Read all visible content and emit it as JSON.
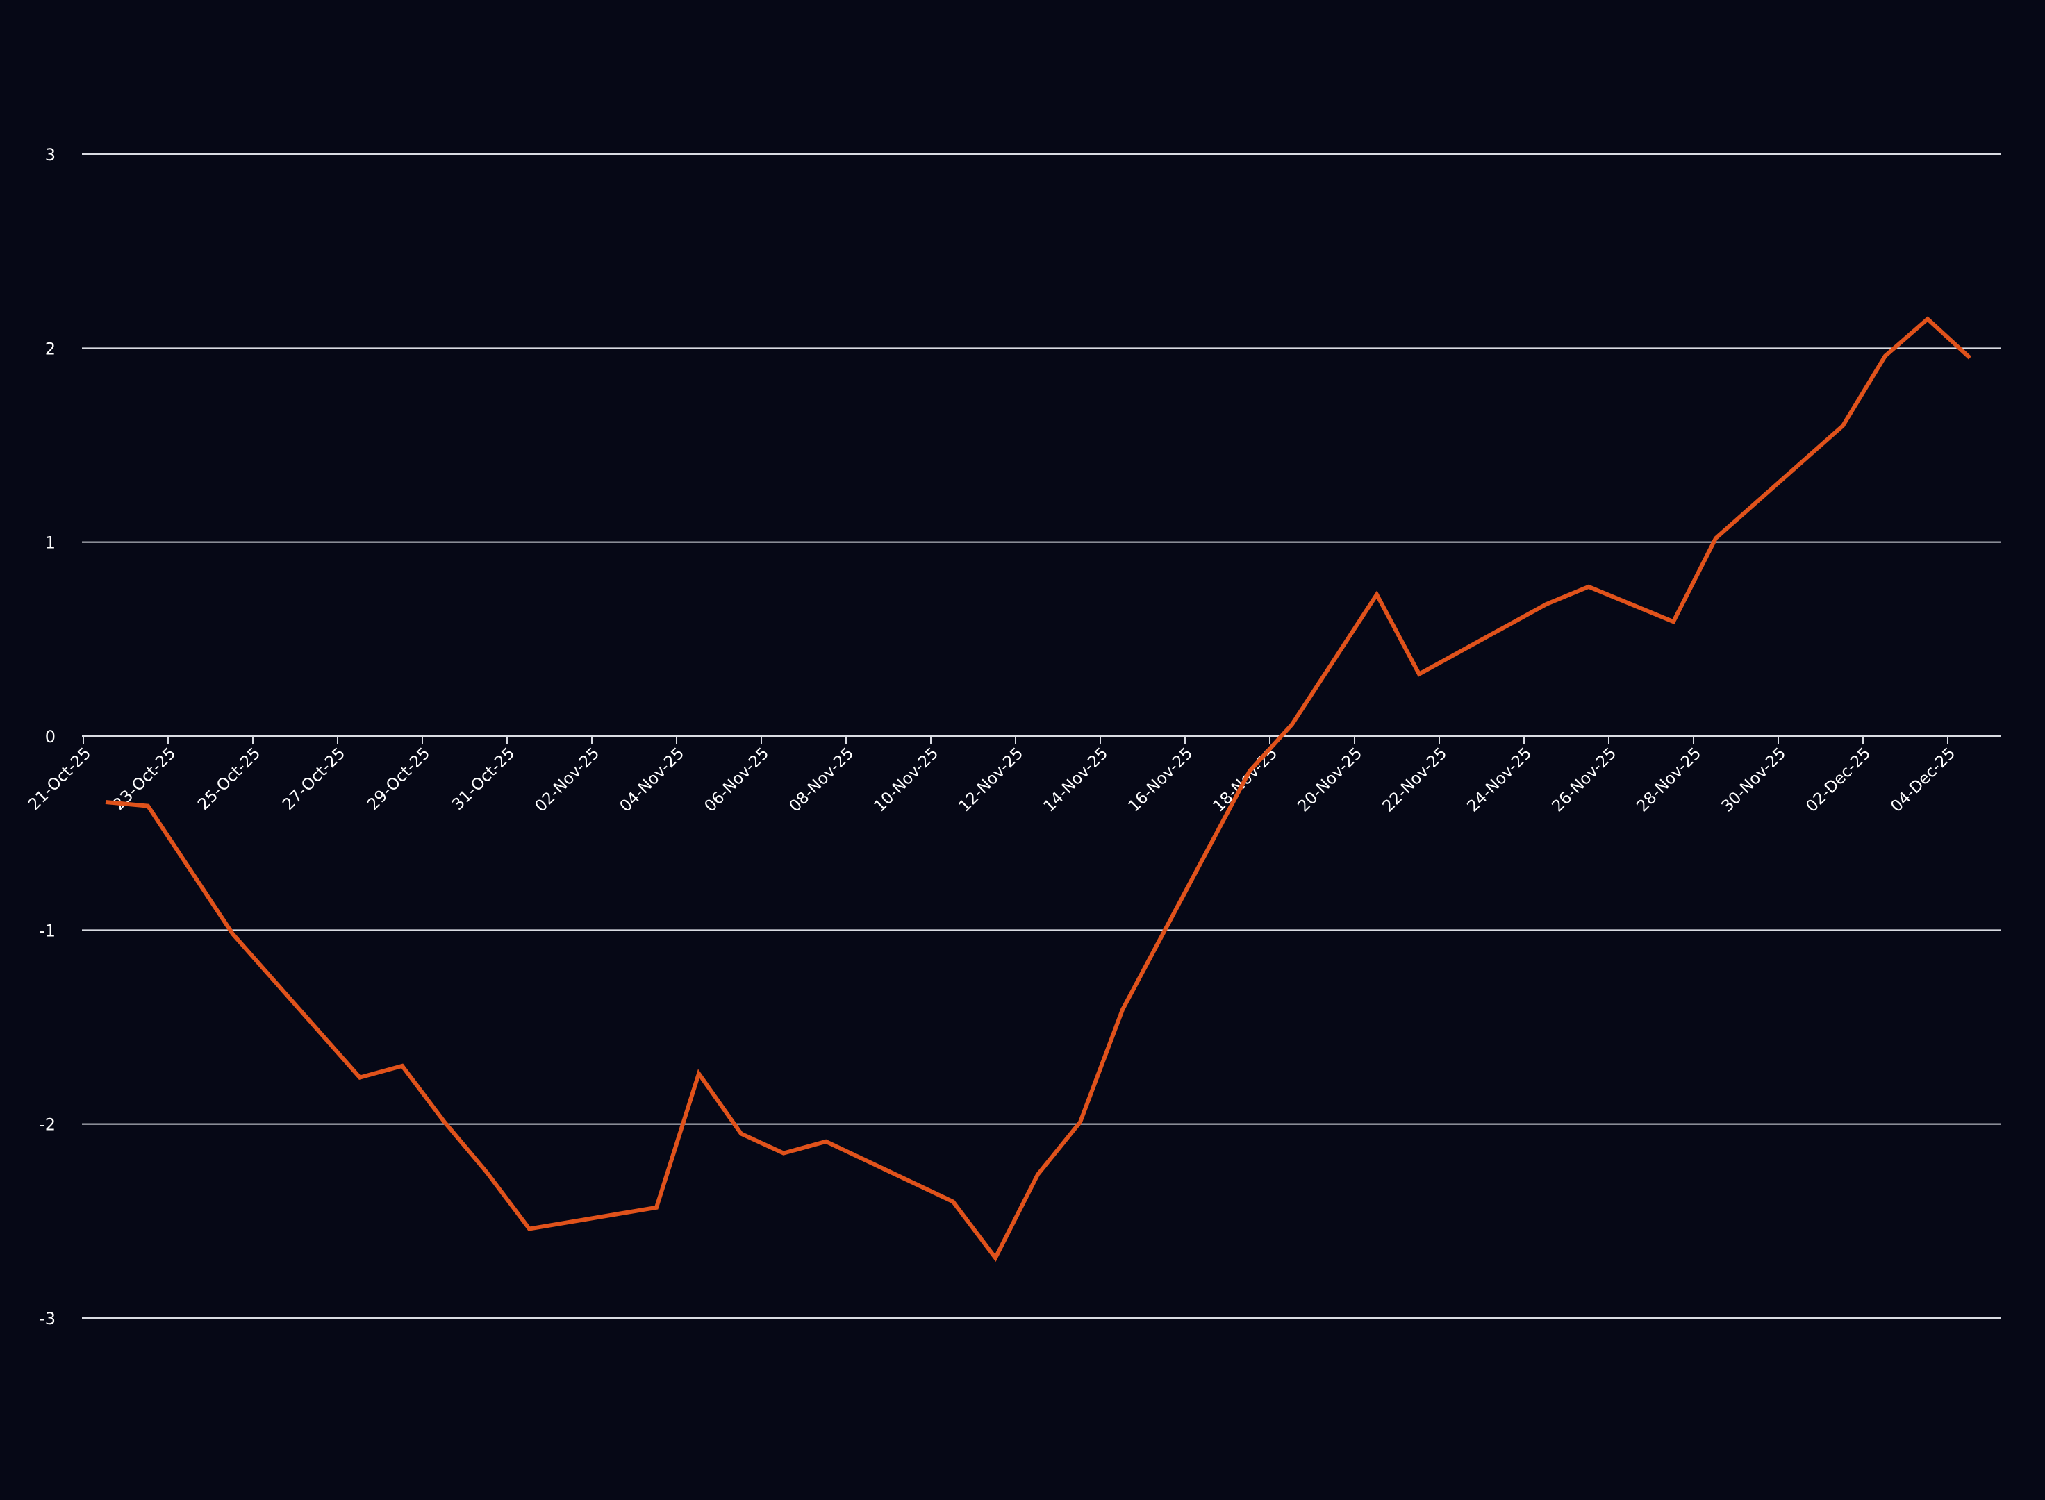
{
  "chart_data": {
    "type": "line",
    "title": "",
    "xlabel": "",
    "ylabel": "",
    "ylim": [
      -3,
      3
    ],
    "y_ticks": [
      "-3",
      "-2",
      "-1",
      "0",
      "1",
      "2",
      "3"
    ],
    "x_range": [
      "2025-10-21",
      "2025-12-04"
    ],
    "x_tick_labels": [
      "21-Oct-25",
      "23-Oct-25",
      "25-Oct-25",
      "27-Oct-25",
      "29-Oct-25",
      "31-Oct-25",
      "02-Nov-25",
      "04-Nov-25",
      "06-Nov-25",
      "08-Nov-25",
      "10-Nov-25",
      "12-Nov-25",
      "14-Nov-25",
      "16-Nov-25",
      "18-Nov-25",
      "20-Nov-25",
      "22-Nov-25",
      "24-Nov-25",
      "26-Nov-25",
      "28-Nov-25",
      "30-Nov-25",
      "02-Dec-25",
      "04-Dec-25"
    ],
    "grid": true,
    "legend": "none",
    "series": [
      {
        "color": "#e0521b",
        "points": [
          [
            "2025-10-21",
            -0.34
          ],
          [
            "2025-10-22",
            -0.36
          ],
          [
            "2025-10-24",
            -1.02
          ],
          [
            "2025-10-27",
            -1.76
          ],
          [
            "2025-10-28",
            -1.7
          ],
          [
            "2025-10-29",
            -1.99
          ],
          [
            "2025-10-30",
            -2.25
          ],
          [
            "2025-10-31",
            -2.54
          ],
          [
            "2025-11-03",
            -2.43
          ],
          [
            "2025-11-04",
            -1.74
          ],
          [
            "2025-11-05",
            -2.05
          ],
          [
            "2025-11-06",
            -2.15
          ],
          [
            "2025-11-07",
            -2.09
          ],
          [
            "2025-11-10",
            -2.4
          ],
          [
            "2025-11-11",
            -2.69
          ],
          [
            "2025-11-12",
            -2.26
          ],
          [
            "2025-11-13",
            -1.99
          ],
          [
            "2025-11-14",
            -1.41
          ],
          [
            "2025-11-17",
            -0.18
          ],
          [
            "2025-11-18",
            0.06
          ],
          [
            "2025-11-20",
            0.73
          ],
          [
            "2025-11-21",
            0.32
          ],
          [
            "2025-11-24",
            0.68
          ],
          [
            "2025-11-25",
            0.77
          ],
          [
            "2025-11-27",
            0.59
          ],
          [
            "2025-11-28",
            1.02
          ],
          [
            "2025-12-01",
            1.6
          ],
          [
            "2025-12-02",
            1.96
          ],
          [
            "2025-12-03",
            2.15
          ],
          [
            "2025-12-04",
            1.95
          ]
        ]
      }
    ]
  }
}
